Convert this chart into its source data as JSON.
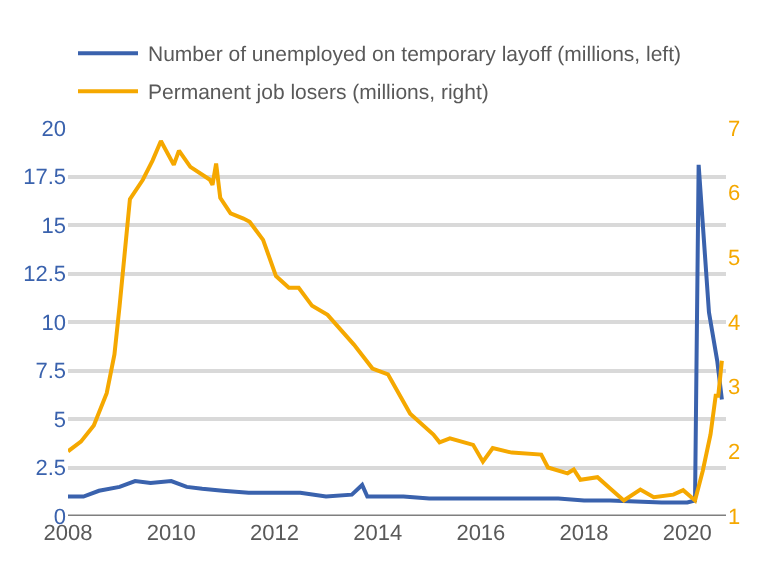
{
  "chart_data": {
    "type": "line",
    "legend": "top left",
    "grid": "y",
    "xlim": [
      2008,
      2020.75
    ],
    "xticks": [
      2008,
      2010,
      2012,
      2014,
      2016,
      2018,
      2020
    ],
    "ylim": [
      0,
      20
    ],
    "yticks": [
      0,
      2.5,
      5,
      7.5,
      10,
      12.5,
      15,
      17.5,
      20
    ],
    "y2lim": [
      1,
      7
    ],
    "y2ticks": [
      1,
      2,
      3,
      4,
      5,
      6,
      7
    ],
    "series": [
      {
        "name": "Number of unemployed on temporary layoff (millions, left)",
        "color": "#3a62ad",
        "x": [
          2008,
          2008.3,
          2008.6,
          2009,
          2009.3,
          2009.6,
          2010,
          2010.3,
          2010.6,
          2011,
          2011.5,
          2012,
          2012.5,
          2013,
          2013.5,
          2013.7,
          2013.8,
          2014,
          2014.5,
          2015,
          2015.5,
          2016,
          2016.5,
          2017,
          2017.5,
          2018,
          2018.5,
          2019,
          2019.5,
          2020,
          2020.15,
          2020.22,
          2020.42,
          2020.58,
          2020.67
        ],
        "values": [
          1.0,
          1.0,
          1.3,
          1.5,
          1.8,
          1.7,
          1.8,
          1.5,
          1.4,
          1.3,
          1.2,
          1.2,
          1.2,
          1.0,
          1.1,
          1.6,
          1.0,
          1.0,
          1.0,
          0.9,
          0.9,
          0.9,
          0.9,
          0.9,
          0.9,
          0.8,
          0.8,
          0.75,
          0.7,
          0.7,
          0.8,
          18.1,
          10.5,
          8.0,
          6.0
        ]
      },
      {
        "name": "Permanent job losers (millions, right)",
        "color": "#f5a800",
        "axis": "y2",
        "x": [
          2008,
          2008.25,
          2008.5,
          2008.75,
          2008.9,
          2009,
          2009.2,
          2009.45,
          2009.64,
          2009.8,
          2010.05,
          2010.15,
          2010.37,
          2010.75,
          2010.8,
          2010.87,
          2010.95,
          2011.15,
          2011.4,
          2011.52,
          2011.78,
          2012.03,
          2012.28,
          2012.47,
          2012.73,
          2013.03,
          2013.54,
          2013.9,
          2014.2,
          2014.3,
          2014.63,
          2015.08,
          2015.2,
          2015.4,
          2015.85,
          2016.04,
          2016.23,
          2016.6,
          2017.17,
          2017.3,
          2017.68,
          2017.8,
          2017.93,
          2018.26,
          2018.5,
          2018.77,
          2019.09,
          2019.35,
          2019.73,
          2019.92,
          2020.15,
          2020.3,
          2020.45,
          2020.55,
          2020.6,
          2020.67
        ],
        "values": [
          2.0,
          2.15,
          2.4,
          2.9,
          3.5,
          4.25,
          5.9,
          6.2,
          6.5,
          6.8,
          6.43,
          6.65,
          6.4,
          6.2,
          6.12,
          6.45,
          5.92,
          5.68,
          5.6,
          5.55,
          5.27,
          4.71,
          4.53,
          4.53,
          4.25,
          4.11,
          3.65,
          3.28,
          3.19,
          3.05,
          2.58,
          2.26,
          2.14,
          2.2,
          2.1,
          1.84,
          2.05,
          1.98,
          1.95,
          1.75,
          1.66,
          1.72,
          1.56,
          1.6,
          1.43,
          1.24,
          1.41,
          1.29,
          1.33,
          1.4,
          1.24,
          1.7,
          2.26,
          2.86,
          2.86,
          3.4
        ]
      }
    ]
  }
}
